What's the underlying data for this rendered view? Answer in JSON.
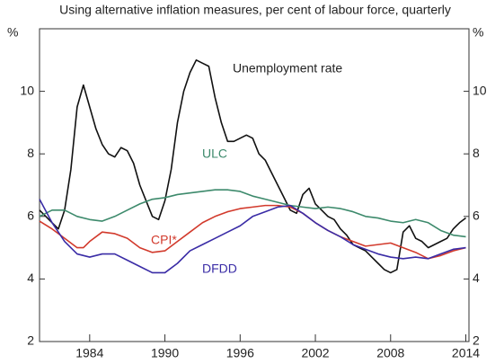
{
  "chart_data": {
    "type": "line",
    "title": "Using alternative inflation measures, per cent of labour force, quarterly",
    "y_label": "%",
    "y2_label": "%",
    "xlim": [
      1980,
      2014.25
    ],
    "xticks": [
      1984,
      1990,
      1996,
      2002,
      2008,
      2014
    ],
    "ylim": [
      2,
      12
    ],
    "yticks": [
      2,
      4,
      6,
      8,
      10
    ],
    "y2lim": [
      2,
      12
    ],
    "y2ticks": [
      2,
      4,
      6,
      8,
      10
    ],
    "annotations": [
      "Unemployment rate",
      "ULC",
      "CPI*",
      "DFDD"
    ],
    "series": [
      {
        "name": "Unemployment rate",
        "color": "#111111",
        "x": [
          1980,
          1981,
          1981.5,
          1982,
          1982.5,
          1983,
          1983.5,
          1984,
          1984.5,
          1985,
          1985.5,
          1986,
          1986.5,
          1987,
          1987.5,
          1988,
          1988.5,
          1989,
          1989.5,
          1990,
          1990.5,
          1991,
          1991.5,
          1992,
          1992.5,
          1993,
          1993.5,
          1994,
          1994.5,
          1995,
          1995.5,
          1996,
          1996.5,
          1997,
          1997.5,
          1998,
          1998.5,
          1999,
          1999.5,
          2000,
          2000.5,
          2001,
          2001.5,
          2002,
          2002.5,
          2003,
          2003.5,
          2004,
          2004.5,
          2005,
          2005.5,
          2006,
          2006.5,
          2007,
          2007.5,
          2008,
          2008.5,
          2009,
          2009.5,
          2010,
          2010.5,
          2011,
          2011.5,
          2012,
          2012.5,
          2013,
          2013.5,
          2014
        ],
        "values": [
          6.2,
          5.8,
          5.6,
          6.2,
          7.5,
          9.5,
          10.2,
          9.5,
          8.8,
          8.3,
          8.0,
          7.9,
          8.2,
          8.1,
          7.7,
          7.0,
          6.5,
          6.0,
          5.9,
          6.5,
          7.5,
          9.0,
          10.0,
          10.6,
          11.0,
          10.9,
          10.8,
          9.8,
          9.0,
          8.4,
          8.4,
          8.5,
          8.6,
          8.5,
          8.0,
          7.8,
          7.4,
          7.0,
          6.6,
          6.2,
          6.1,
          6.7,
          6.9,
          6.4,
          6.2,
          6.0,
          5.9,
          5.6,
          5.4,
          5.1,
          5.0,
          4.9,
          4.7,
          4.5,
          4.3,
          4.2,
          4.3,
          5.5,
          5.7,
          5.3,
          5.2,
          5.0,
          5.1,
          5.2,
          5.3,
          5.6,
          5.8,
          5.95
        ]
      },
      {
        "name": "ULC",
        "color": "#3d8a6c",
        "x": [
          1980,
          1981,
          1982,
          1983,
          1984,
          1985,
          1986,
          1987,
          1988,
          1989,
          1990,
          1991,
          1992,
          1993,
          1994,
          1995,
          1996,
          1997,
          1998,
          1999,
          2000,
          2001,
          2002,
          2003,
          2004,
          2005,
          2006,
          2007,
          2008,
          2009,
          2010,
          2011,
          2012,
          2013,
          2014
        ],
        "values": [
          6.0,
          6.2,
          6.2,
          6.0,
          5.9,
          5.85,
          6.0,
          6.2,
          6.4,
          6.55,
          6.6,
          6.7,
          6.75,
          6.8,
          6.85,
          6.85,
          6.8,
          6.65,
          6.55,
          6.45,
          6.35,
          6.3,
          6.25,
          6.3,
          6.25,
          6.15,
          6.0,
          5.95,
          5.85,
          5.8,
          5.9,
          5.8,
          5.55,
          5.4,
          5.35
        ]
      },
      {
        "name": "CPI*",
        "color": "#d23a2c",
        "x": [
          1980,
          1981,
          1982,
          1983,
          1983.5,
          1984,
          1985,
          1986,
          1987,
          1988,
          1989,
          1990,
          1991,
          1992,
          1993,
          1994,
          1995,
          1996,
          1997,
          1998,
          1999,
          2000,
          2001,
          2002,
          2003,
          2004,
          2005,
          2006,
          2007,
          2008,
          2009,
          2010,
          2011,
          2012,
          2013,
          2014
        ],
        "values": [
          5.85,
          5.6,
          5.3,
          5.0,
          5.0,
          5.2,
          5.5,
          5.45,
          5.3,
          5.0,
          4.85,
          4.9,
          5.2,
          5.5,
          5.8,
          6.0,
          6.15,
          6.25,
          6.3,
          6.35,
          6.35,
          6.3,
          6.1,
          5.8,
          5.55,
          5.35,
          5.2,
          5.05,
          5.1,
          5.15,
          5.0,
          4.85,
          4.65,
          4.75,
          4.9,
          5.0
        ]
      },
      {
        "name": "DFDD",
        "color": "#3a2ca6",
        "x": [
          1980,
          1981,
          1982,
          1983,
          1984,
          1985,
          1986,
          1987,
          1988,
          1989,
          1990,
          1991,
          1992,
          1993,
          1994,
          1995,
          1996,
          1997,
          1998,
          1999,
          2000,
          2001,
          2002,
          2003,
          2004,
          2005,
          2006,
          2007,
          2008,
          2009,
          2010,
          2011,
          2012,
          2013,
          2014
        ],
        "values": [
          6.55,
          5.8,
          5.2,
          4.8,
          4.7,
          4.8,
          4.8,
          4.6,
          4.4,
          4.2,
          4.2,
          4.5,
          4.9,
          5.1,
          5.3,
          5.5,
          5.7,
          6.0,
          6.15,
          6.3,
          6.35,
          6.1,
          5.8,
          5.55,
          5.35,
          5.1,
          4.95,
          4.8,
          4.7,
          4.65,
          4.7,
          4.65,
          4.8,
          4.95,
          5.0
        ]
      }
    ]
  }
}
